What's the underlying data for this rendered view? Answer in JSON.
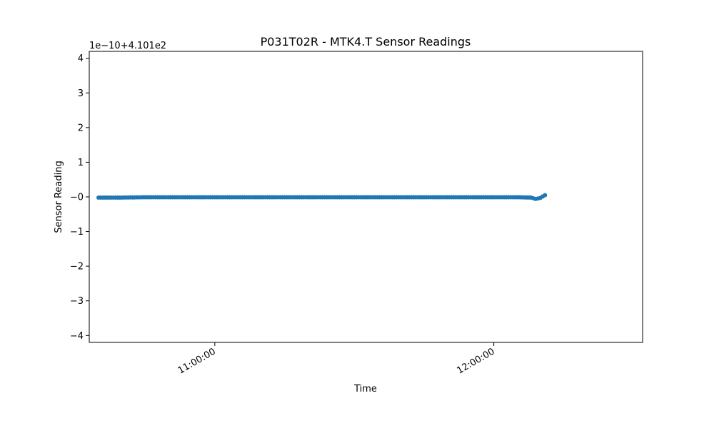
{
  "chart_data": {
    "type": "line",
    "title": "P031T02R - MTK4.T Sensor Readings",
    "xlabel": "Time",
    "ylabel": "Sensor Reading",
    "offset_label": "1e−10+4.101e2",
    "x_tick_labels": [
      "11:00:00",
      "12:00:00"
    ],
    "y_tick_labels": [
      "−4",
      "−3",
      "−2",
      "−1",
      "−0",
      "1",
      "2",
      "3",
      "4"
    ],
    "y_tick_values": [
      -4,
      -3,
      -2,
      -1,
      0,
      1,
      2,
      3,
      4
    ],
    "x_tick_times": [
      "11:00:00",
      "12:00:00"
    ],
    "x_range": [
      "10:33:00",
      "12:32:00"
    ],
    "y_range": [
      -4.2,
      4.2
    ],
    "grid": false,
    "legend": "none",
    "marker": "circle",
    "color": "#1f77b4",
    "series": [
      {
        "x": [
          "10:35:00",
          "10:40:00",
          "10:45:00",
          "10:50:00",
          "10:55:00",
          "11:00:00",
          "11:10:00",
          "11:20:00",
          "11:30:00",
          "11:40:00",
          "11:50:00",
          "12:00:00",
          "12:05:00",
          "12:08:00",
          "12:09:00",
          "12:10:00",
          "12:11:00"
        ],
        "values": [
          -0.02,
          -0.02,
          -0.01,
          -0.01,
          -0.01,
          -0.01,
          -0.01,
          -0.01,
          -0.01,
          -0.01,
          -0.01,
          -0.01,
          -0.01,
          -0.02,
          -0.06,
          -0.03,
          0.05
        ]
      }
    ]
  }
}
